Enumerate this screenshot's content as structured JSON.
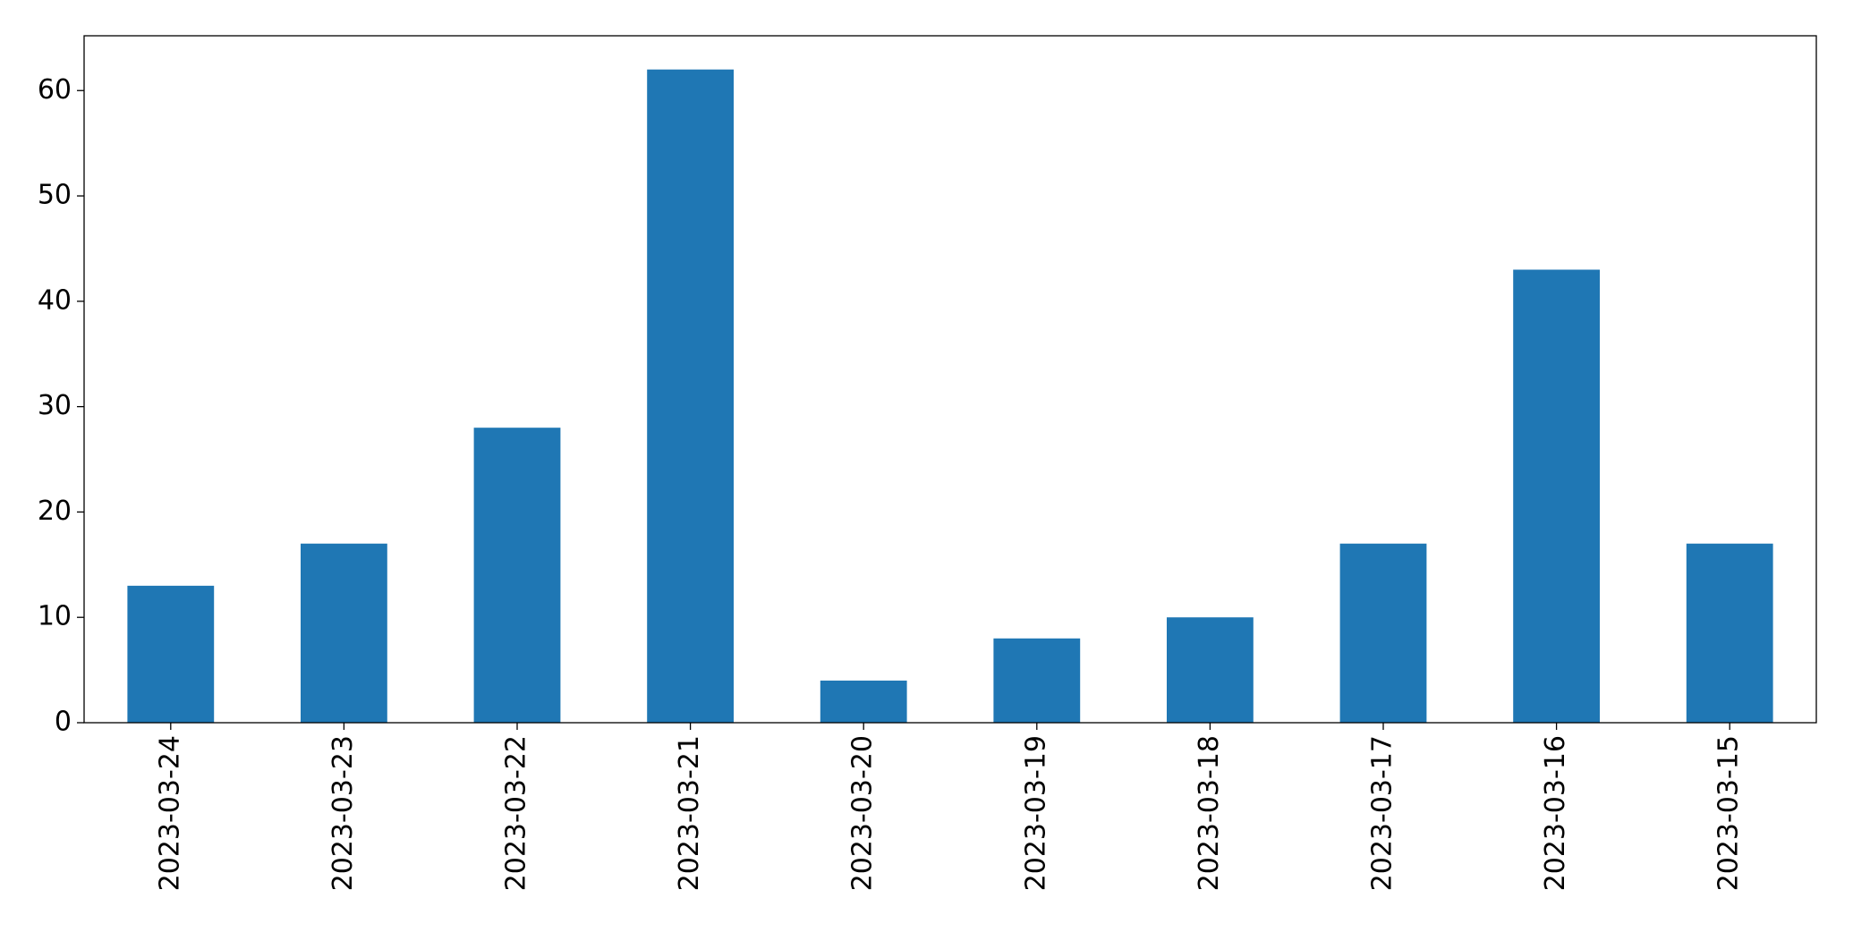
{
  "chart_data": {
    "type": "bar",
    "categories": [
      "2023-03-24",
      "2023-03-23",
      "2023-03-22",
      "2023-03-21",
      "2023-03-20",
      "2023-03-19",
      "2023-03-18",
      "2023-03-17",
      "2023-03-16",
      "2023-03-15"
    ],
    "values": [
      13,
      17,
      28,
      62,
      4,
      8,
      10,
      17,
      43,
      17
    ],
    "color": "#1f77b4",
    "ylim": [
      0,
      65.2
    ],
    "yticks": [
      0,
      10,
      20,
      30,
      40,
      50,
      60
    ],
    "grid": false
  }
}
